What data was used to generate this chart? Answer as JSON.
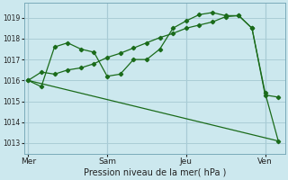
{
  "background_color": "#cce8ee",
  "grid_color": "#aacdd6",
  "line_color": "#1a6b1a",
  "title": "Pression niveau de la mer( hPa )",
  "ylim": [
    1012.5,
    1019.7
  ],
  "yticks": [
    1013,
    1014,
    1015,
    1016,
    1017,
    1018,
    1019
  ],
  "day_labels": [
    "Mer",
    "Sam",
    "Jeu",
    "Ven"
  ],
  "day_positions": [
    0,
    6,
    12,
    18
  ],
  "xlim": [
    -0.3,
    19.5
  ],
  "series1_x": [
    0,
    1,
    2,
    3,
    4,
    5,
    6,
    7,
    8,
    9,
    10,
    11,
    12,
    13,
    14,
    15,
    16,
    17,
    18,
    19
  ],
  "series1_y": [
    1016.0,
    1015.7,
    1017.6,
    1017.8,
    1017.5,
    1017.35,
    1016.2,
    1016.3,
    1017.0,
    1017.0,
    1017.5,
    1018.5,
    1018.85,
    1019.15,
    1019.25,
    1019.1,
    1019.1,
    1018.5,
    1015.3,
    1015.2
  ],
  "series2_x": [
    0,
    1,
    2,
    3,
    4,
    5,
    6,
    7,
    8,
    9,
    10,
    11,
    12,
    13,
    14,
    15,
    16,
    17,
    18,
    19
  ],
  "series2_y": [
    1016.0,
    1016.4,
    1016.3,
    1016.5,
    1016.6,
    1016.8,
    1017.1,
    1017.3,
    1017.55,
    1017.8,
    1018.05,
    1018.25,
    1018.5,
    1018.65,
    1018.8,
    1019.05,
    1019.1,
    1018.5,
    1015.4,
    1013.1
  ],
  "series3_x": [
    0,
    19
  ],
  "series3_y": [
    1016.0,
    1013.1
  ]
}
